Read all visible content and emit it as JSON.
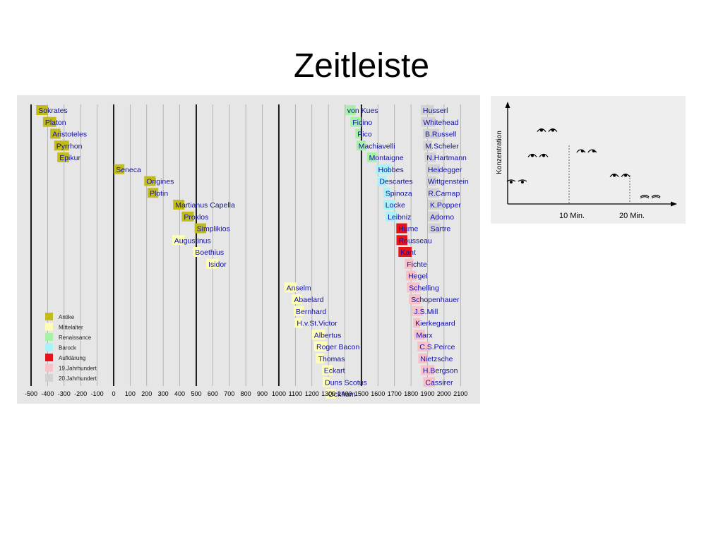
{
  "slide": {
    "title": "Zeitleiste"
  },
  "chart_data": [
    {
      "type": "timeline",
      "xlim": [
        -500,
        2150
      ],
      "ticks": [
        -500,
        -400,
        -300,
        -200,
        -100,
        0,
        100,
        200,
        300,
        400,
        500,
        600,
        700,
        800,
        900,
        1000,
        1100,
        1200,
        1300,
        1400,
        1500,
        1600,
        1700,
        1800,
        1900,
        2000,
        2100
      ],
      "major_ticks": [
        -500,
        0,
        500,
        1000,
        1500
      ],
      "legend": {
        "placement": "bottom-left",
        "items": [
          {
            "key": "antike",
            "label": "Antike",
            "color": "#c2bc1a"
          },
          {
            "key": "mittelalter",
            "label": "Mittelalter",
            "color": "#fdfdb6"
          },
          {
            "key": "renaissance",
            "label": "Renaissance",
            "color": "#a7f0a7"
          },
          {
            "key": "barock",
            "label": "Barock",
            "color": "#a9f2f7"
          },
          {
            "key": "aufklaerung",
            "label": "Aufklärung",
            "color": "#e8121b"
          },
          {
            "key": "jh19",
            "label": "19.Jahrhundert",
            "color": "#f7c1c9"
          },
          {
            "key": "jh20",
            "label": "20.Jahrhundert",
            "color": "#d2d2d2"
          }
        ]
      },
      "philosophers": [
        {
          "name": "Sokrates",
          "start": -469,
          "end": -399,
          "era": "antike"
        },
        {
          "name": "Platon",
          "start": -428,
          "end": -348,
          "era": "antike"
        },
        {
          "name": "Aristoteles",
          "start": -384,
          "end": -322,
          "era": "antike"
        },
        {
          "name": "Pyrrhon",
          "start": -360,
          "end": -270,
          "era": "antike"
        },
        {
          "name": "Epikur",
          "start": -341,
          "end": -270,
          "era": "antike"
        },
        {
          "name": "Seneca",
          "start": 1,
          "end": 65,
          "era": "antike"
        },
        {
          "name": "Origines",
          "start": 185,
          "end": 254,
          "era": "antike"
        },
        {
          "name": "Plotin",
          "start": 205,
          "end": 270,
          "era": "antike"
        },
        {
          "name": "Martianus Capella",
          "start": 360,
          "end": 428,
          "era": "antike"
        },
        {
          "name": "Proklos",
          "start": 412,
          "end": 485,
          "era": "antike"
        },
        {
          "name": "Simplikios",
          "start": 490,
          "end": 560,
          "era": "antike"
        },
        {
          "name": "Augustinus",
          "start": 354,
          "end": 430,
          "era": "mittelalter"
        },
        {
          "name": "Boethius",
          "start": 480,
          "end": 525,
          "era": "mittelalter"
        },
        {
          "name": "Isidor",
          "start": 560,
          "end": 636,
          "era": "mittelalter"
        },
        {
          "name": "Anselm",
          "start": 1033,
          "end": 1109,
          "era": "mittelalter"
        },
        {
          "name": "Abaelard",
          "start": 1079,
          "end": 1142,
          "era": "mittelalter"
        },
        {
          "name": "Bernhard",
          "start": 1090,
          "end": 1153,
          "era": "mittelalter"
        },
        {
          "name": "H.v.St.Victor",
          "start": 1096,
          "end": 1141,
          "era": "mittelalter"
        },
        {
          "name": "Albertus",
          "start": 1200,
          "end": 1280,
          "era": "mittelalter"
        },
        {
          "name": "Roger Bacon",
          "start": 1214,
          "end": 1292,
          "era": "mittelalter"
        },
        {
          "name": "Thomas",
          "start": 1225,
          "end": 1274,
          "era": "mittelalter"
        },
        {
          "name": "Eckart",
          "start": 1260,
          "end": 1328,
          "era": "mittelalter"
        },
        {
          "name": "Duns Scotus",
          "start": 1266,
          "end": 1308,
          "era": "mittelalter"
        },
        {
          "name": "Ockham",
          "start": 1285,
          "end": 1347,
          "era": "mittelalter"
        },
        {
          "name": "von Kues",
          "start": 1401,
          "end": 1464,
          "era": "renaissance"
        },
        {
          "name": "Ficino",
          "start": 1433,
          "end": 1499,
          "era": "renaissance"
        },
        {
          "name": "Pico",
          "start": 1463,
          "end": 1494,
          "era": "renaissance"
        },
        {
          "name": "Machiavelli",
          "start": 1469,
          "end": 1527,
          "era": "renaissance"
        },
        {
          "name": "Montaigne",
          "start": 1533,
          "end": 1592,
          "era": "renaissance"
        },
        {
          "name": "Hobbes",
          "start": 1588,
          "end": 1679,
          "era": "barock"
        },
        {
          "name": "Descartes",
          "start": 1596,
          "end": 1650,
          "era": "barock"
        },
        {
          "name": "Spinoza",
          "start": 1632,
          "end": 1677,
          "era": "barock"
        },
        {
          "name": "Locke",
          "start": 1632,
          "end": 1704,
          "era": "barock"
        },
        {
          "name": "Leibniz",
          "start": 1646,
          "end": 1716,
          "era": "barock"
        },
        {
          "name": "Hume",
          "start": 1711,
          "end": 1776,
          "era": "aufklaerung"
        },
        {
          "name": "Rousseau",
          "start": 1712,
          "end": 1778,
          "era": "aufklaerung"
        },
        {
          "name": "Kant",
          "start": 1724,
          "end": 1804,
          "era": "aufklaerung"
        },
        {
          "name": "Fichte",
          "start": 1762,
          "end": 1814,
          "era": "jh19"
        },
        {
          "name": "Hegel",
          "start": 1770,
          "end": 1831,
          "era": "jh19"
        },
        {
          "name": "Schelling",
          "start": 1775,
          "end": 1854,
          "era": "jh19"
        },
        {
          "name": "Schopenhauer",
          "start": 1788,
          "end": 1860,
          "era": "jh19"
        },
        {
          "name": "J.S.Mill",
          "start": 1806,
          "end": 1873,
          "era": "jh19"
        },
        {
          "name": "Kierkegaard",
          "start": 1813,
          "end": 1855,
          "era": "jh19"
        },
        {
          "name": "Marx",
          "start": 1818,
          "end": 1883,
          "era": "jh19"
        },
        {
          "name": "C.S.Peirce",
          "start": 1839,
          "end": 1914,
          "era": "jh19"
        },
        {
          "name": "Nietzsche",
          "start": 1844,
          "end": 1900,
          "era": "jh19"
        },
        {
          "name": "H.Bergson",
          "start": 1859,
          "end": 1941,
          "era": "jh19"
        },
        {
          "name": "Cassirer",
          "start": 1874,
          "end": 1945,
          "era": "jh19"
        },
        {
          "name": "Husserl",
          "start": 1859,
          "end": 1938,
          "era": "jh20"
        },
        {
          "name": "Whitehead",
          "start": 1861,
          "end": 1947,
          "era": "jh20"
        },
        {
          "name": "B.Russell",
          "start": 1872,
          "end": 1970,
          "era": "jh20"
        },
        {
          "name": "M.Scheler",
          "start": 1874,
          "end": 1928,
          "era": "jh20"
        },
        {
          "name": "N.Hartmann",
          "start": 1882,
          "end": 1950,
          "era": "jh20"
        },
        {
          "name": "Heidegger",
          "start": 1889,
          "end": 1976,
          "era": "jh20"
        },
        {
          "name": "Wittgenstein",
          "start": 1889,
          "end": 1951,
          "era": "jh20"
        },
        {
          "name": "R.Carnap",
          "start": 1891,
          "end": 1970,
          "era": "jh20"
        },
        {
          "name": "K.Popper",
          "start": 1902,
          "end": 1994,
          "era": "jh20"
        },
        {
          "name": "Adorno",
          "start": 1903,
          "end": 1969,
          "era": "jh20"
        },
        {
          "name": "Sartre",
          "start": 1905,
          "end": 1980,
          "era": "jh20"
        }
      ]
    },
    {
      "type": "line",
      "ylabel": "Konzentration",
      "xlabel": "",
      "x_tick_labels": [
        "10 Min.",
        "20 Min."
      ],
      "icon": "eye-faces",
      "series": [
        {
          "values": [
            {
              "x": 1.5,
              "y": 0.25,
              "icon": "sleepy-eyes"
            },
            {
              "x": 5,
              "y": 0.52,
              "icon": "wide-open-eyes"
            },
            {
              "x": 6.5,
              "y": 0.8,
              "icon": "open-eyes"
            },
            {
              "x": 13,
              "y": 0.57,
              "icon": "side-glance-eyes"
            },
            {
              "x": 18.5,
              "y": 0.3,
              "icon": "half-closed-eyes"
            },
            {
              "x": 23.5,
              "y": 0.08,
              "icon": "closed-eyes"
            }
          ]
        }
      ]
    }
  ]
}
